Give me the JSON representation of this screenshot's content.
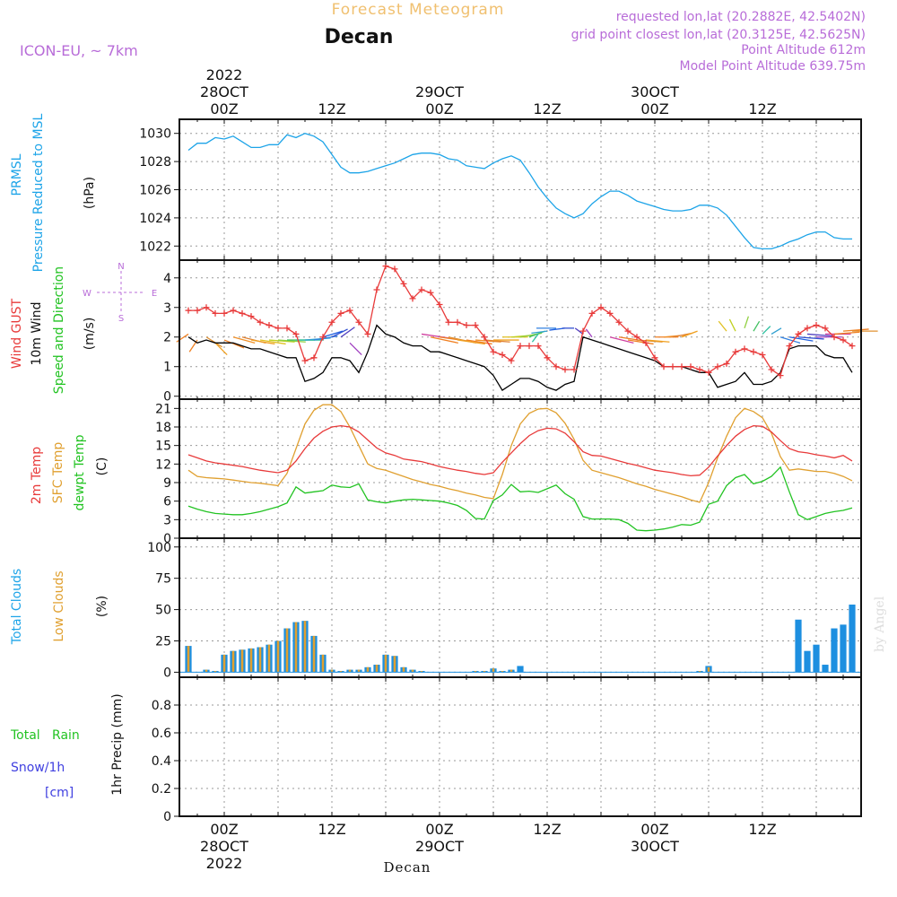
{
  "header": {
    "supertitle": "Forecast Meteogram",
    "location": "Decan",
    "model": "ICON-EU, ~ 7km",
    "requested": "requested lon,lat (20.2882E, 42.5402N)",
    "gridpoint": "grid point closest lon,lat (20.3125E, 42.5625N)",
    "altitude": "Point Altitude 612m",
    "model_altitude": "Model Point Altitude 639.75m",
    "watermark": "by Angel",
    "footer": "Decan"
  },
  "time_axis": {
    "year": "2022",
    "top_labels": [
      {
        "h": 0,
        "lines": [
          "2022",
          "28OCT",
          "00Z"
        ]
      },
      {
        "h": 12,
        "lines": [
          "12Z"
        ]
      },
      {
        "h": 24,
        "lines": [
          "29OCT",
          "00Z"
        ]
      },
      {
        "h": 36,
        "lines": [
          "12Z"
        ]
      },
      {
        "h": 48,
        "lines": [
          "30OCT",
          "00Z"
        ]
      },
      {
        "h": 60,
        "lines": [
          "12Z"
        ]
      }
    ],
    "bottom_labels": [
      {
        "h": 0,
        "lines": [
          "00Z",
          "28OCT",
          "2022"
        ]
      },
      {
        "h": 12,
        "lines": [
          "12Z"
        ]
      },
      {
        "h": 24,
        "lines": [
          "00Z",
          "29OCT"
        ]
      },
      {
        "h": 36,
        "lines": [
          "12Z"
        ]
      },
      {
        "h": 48,
        "lines": [
          "00Z",
          "30OCT"
        ]
      },
      {
        "h": 60,
        "lines": [
          "12Z"
        ]
      }
    ],
    "hour_range": [
      -5,
      71
    ]
  },
  "panels": {
    "pressure": {
      "label1": "PRMSL",
      "label2": "Pressure Reduced to MSL",
      "unit": "(hPa)"
    },
    "wind": {
      "label_gust": "Wind GUST",
      "label_wind": "10m Wind",
      "label_dir": "Speed and Direction",
      "unit": "(m/s)",
      "compass": {
        "n": "N",
        "s": "S",
        "e": "E",
        "w": "W"
      }
    },
    "temp": {
      "label_t2m": "2m Temp",
      "label_sfc": "SFC Temp",
      "label_dew": "dewpt Temp",
      "unit": "(C)"
    },
    "clouds": {
      "label_total": "Total Clouds",
      "label_low": "Low Clouds",
      "unit": "(%)"
    },
    "precip": {
      "label_rain": "Total   Rain",
      "label_snow": "Snow/1h",
      "label_cm": "[cm]",
      "unit": "1hr Precip (mm)"
    }
  },
  "colors": {
    "pressure": "#1da4e8",
    "gust": "#e83a3a",
    "wind": "#000000",
    "t2m": "#e83a3a",
    "sfc": "#e0a030",
    "dew": "#22c322",
    "total_cloud": "#1d8fe0",
    "low_cloud": "#e0a030",
    "title": "#f0c070",
    "meta": "#b86cd8",
    "rain": "#22c322",
    "snow": "#4040e0"
  },
  "chart_data": [
    {
      "type": "line",
      "title": "PRMSL Pressure Reduced to MSL",
      "ylabel": "hPa",
      "ylim": [
        1021,
        1031
      ],
      "yticks": [
        1022,
        1024,
        1026,
        1028,
        1030
      ],
      "x": [
        -4,
        -3,
        -2,
        -1,
        0,
        1,
        2,
        3,
        4,
        5,
        6,
        7,
        8,
        9,
        10,
        11,
        12,
        13,
        14,
        15,
        16,
        17,
        18,
        19,
        20,
        21,
        22,
        23,
        24,
        25,
        26,
        27,
        28,
        29,
        30,
        31,
        32,
        33,
        34,
        35,
        36,
        37,
        38,
        39,
        40,
        41,
        42,
        43,
        44,
        45,
        46,
        47,
        48,
        49,
        50,
        51,
        52,
        53,
        54,
        55,
        56,
        57,
        58,
        59,
        60,
        61,
        62,
        63,
        64,
        65,
        66,
        67,
        68,
        69,
        70
      ],
      "series": [
        {
          "name": "PRMSL",
          "values": [
            1028.8,
            1029.3,
            1029.3,
            1029.7,
            1029.6,
            1029.8,
            1029.4,
            1029.0,
            1029.0,
            1029.2,
            1029.2,
            1029.9,
            1029.7,
            1030.0,
            1029.8,
            1029.4,
            1028.5,
            1027.6,
            1027.2,
            1027.2,
            1027.3,
            1027.5,
            1027.7,
            1027.9,
            1028.2,
            1028.5,
            1028.6,
            1028.6,
            1028.5,
            1028.2,
            1028.1,
            1027.7,
            1027.6,
            1027.5,
            1027.9,
            1028.2,
            1028.4,
            1028.1,
            1027.2,
            1026.2,
            1025.4,
            1024.7,
            1024.3,
            1024.0,
            1024.3,
            1025.0,
            1025.5,
            1025.9,
            1025.9,
            1025.6,
            1025.2,
            1025.0,
            1024.8,
            1024.6,
            1024.5,
            1024.5,
            1024.6,
            1024.9,
            1024.9,
            1024.7,
            1024.2,
            1023.4,
            1022.6,
            1021.9,
            1021.8,
            1021.8,
            1022.0,
            1022.3,
            1022.5,
            1022.8,
            1023.0,
            1023.0,
            1022.6,
            1022.5,
            1022.5
          ]
        }
      ]
    },
    {
      "type": "line",
      "title": "Wind GUST / 10m Wind Speed and Direction",
      "ylabel": "m/s",
      "ylim": [
        0,
        4.6
      ],
      "yticks": [
        0,
        1,
        2,
        3,
        4
      ],
      "x": [
        -4,
        -3,
        -2,
        -1,
        0,
        1,
        2,
        3,
        4,
        5,
        6,
        7,
        8,
        9,
        10,
        11,
        12,
        13,
        14,
        15,
        16,
        17,
        18,
        19,
        20,
        21,
        22,
        23,
        24,
        25,
        26,
        27,
        28,
        29,
        30,
        31,
        32,
        33,
        34,
        35,
        36,
        37,
        38,
        39,
        40,
        41,
        42,
        43,
        44,
        45,
        46,
        47,
        48,
        49,
        50,
        51,
        52,
        53,
        54,
        55,
        56,
        57,
        58,
        59,
        60,
        61,
        62,
        63,
        64,
        65,
        66,
        67,
        68,
        69,
        70
      ],
      "series": [
        {
          "name": "Wind GUST",
          "values": [
            2.9,
            2.9,
            3.0,
            2.8,
            2.8,
            2.9,
            2.8,
            2.7,
            2.5,
            2.4,
            2.3,
            2.3,
            2.1,
            1.2,
            1.3,
            2.0,
            2.5,
            2.8,
            2.9,
            2.5,
            2.1,
            3.6,
            4.4,
            4.3,
            3.8,
            3.3,
            3.6,
            3.5,
            3.1,
            2.5,
            2.5,
            2.4,
            2.4,
            2.0,
            1.5,
            1.4,
            1.2,
            1.7,
            1.7,
            1.7,
            1.3,
            1.0,
            0.9,
            0.9,
            2.2,
            2.8,
            3.0,
            2.8,
            2.5,
            2.2,
            2.0,
            1.8,
            1.3,
            1.0,
            1.0,
            1.0,
            1.0,
            0.9,
            0.8,
            1.0,
            1.1,
            1.5,
            1.6,
            1.5,
            1.4,
            0.9,
            0.7,
            1.7,
            2.1,
            2.3,
            2.4,
            2.3,
            2.0,
            1.9,
            1.7
          ]
        },
        {
          "name": "10m Wind",
          "values": [
            2.0,
            1.8,
            1.9,
            1.8,
            1.8,
            1.8,
            1.7,
            1.6,
            1.6,
            1.5,
            1.4,
            1.3,
            1.3,
            0.5,
            0.6,
            0.8,
            1.3,
            1.3,
            1.2,
            0.8,
            1.5,
            2.4,
            2.1,
            2.0,
            1.8,
            1.7,
            1.7,
            1.5,
            1.5,
            1.4,
            1.3,
            1.2,
            1.1,
            1.0,
            0.7,
            0.2,
            0.4,
            0.6,
            0.6,
            0.5,
            0.3,
            0.2,
            0.4,
            0.5,
            2.0,
            1.9,
            1.8,
            1.7,
            1.6,
            1.5,
            1.4,
            1.3,
            1.2,
            1.0,
            1.0,
            1.0,
            0.9,
            0.8,
            0.8,
            0.3,
            0.4,
            0.5,
            0.8,
            0.4,
            0.4,
            0.5,
            0.8,
            1.6,
            1.7,
            1.7,
            1.7,
            1.4,
            1.3,
            1.3,
            0.8
          ]
        }
      ]
    },
    {
      "type": "line",
      "title": "2m Temp / SFC Temp / dewpt Temp",
      "ylabel": "C",
      "ylim": [
        0,
        22.5
      ],
      "yticks": [
        0,
        3,
        6,
        9,
        12,
        15,
        18,
        21
      ],
      "x": [
        -4,
        -3,
        -2,
        -1,
        0,
        1,
        2,
        3,
        4,
        5,
        6,
        7,
        8,
        9,
        10,
        11,
        12,
        13,
        14,
        15,
        16,
        17,
        18,
        19,
        20,
        21,
        22,
        23,
        24,
        25,
        26,
        27,
        28,
        29,
        30,
        31,
        32,
        33,
        34,
        35,
        36,
        37,
        38,
        39,
        40,
        41,
        42,
        43,
        44,
        45,
        46,
        47,
        48,
        49,
        50,
        51,
        52,
        53,
        54,
        55,
        56,
        57,
        58,
        59,
        60,
        61,
        62,
        63,
        64,
        65,
        66,
        67,
        68,
        69,
        70
      ],
      "series": [
        {
          "name": "2m Temp",
          "values": [
            13.5,
            13.0,
            12.5,
            12.2,
            12.0,
            11.8,
            11.6,
            11.3,
            11.0,
            10.8,
            10.6,
            11.0,
            12.5,
            14.5,
            16.2,
            17.3,
            18.0,
            18.2,
            18.0,
            17.2,
            15.9,
            14.6,
            13.8,
            13.4,
            12.8,
            12.6,
            12.4,
            12.0,
            11.6,
            11.3,
            11.0,
            10.8,
            10.5,
            10.3,
            10.6,
            12.3,
            13.8,
            15.3,
            16.6,
            17.4,
            17.8,
            17.7,
            17.0,
            15.6,
            14.0,
            13.4,
            13.3,
            12.9,
            12.5,
            12.1,
            11.8,
            11.4,
            11.0,
            10.8,
            10.6,
            10.3,
            10.1,
            10.2,
            11.5,
            13.3,
            15.0,
            16.5,
            17.6,
            18.2,
            18.1,
            17.2,
            15.8,
            14.5,
            14.0,
            13.8,
            13.5,
            13.3,
            13.0,
            13.4,
            12.5
          ]
        },
        {
          "name": "SFC Temp",
          "values": [
            11.0,
            10.0,
            9.8,
            9.7,
            9.6,
            9.4,
            9.2,
            9.0,
            8.9,
            8.7,
            8.5,
            10.5,
            14.5,
            18.5,
            20.7,
            21.6,
            21.6,
            20.5,
            18.0,
            15.0,
            12.0,
            11.3,
            11.0,
            10.5,
            10.0,
            9.5,
            9.1,
            8.7,
            8.4,
            8.0,
            7.7,
            7.3,
            7.0,
            6.6,
            6.4,
            10.3,
            15.0,
            18.5,
            20.2,
            20.9,
            21.0,
            20.3,
            18.6,
            16.0,
            12.6,
            11.0,
            10.6,
            10.2,
            9.8,
            9.3,
            8.8,
            8.4,
            7.9,
            7.5,
            7.1,
            6.7,
            6.2,
            5.8,
            9.0,
            13.0,
            16.5,
            19.5,
            21.0,
            20.5,
            19.5,
            17.0,
            13.2,
            11.0,
            11.2,
            11.0,
            10.8,
            10.8,
            10.5,
            10.0,
            9.3
          ]
        },
        {
          "name": "dewpt Temp",
          "values": [
            5.2,
            4.7,
            4.3,
            4.0,
            3.9,
            3.8,
            3.8,
            4.0,
            4.3,
            4.7,
            5.1,
            5.7,
            8.3,
            7.3,
            7.5,
            7.7,
            8.6,
            8.3,
            8.2,
            8.8,
            6.2,
            5.9,
            5.7,
            6.0,
            6.2,
            6.3,
            6.2,
            6.1,
            6.0,
            5.7,
            5.3,
            4.5,
            3.2,
            3.1,
            6.1,
            7.0,
            8.7,
            7.5,
            7.6,
            7.4,
            8.0,
            8.6,
            7.2,
            6.3,
            3.5,
            3.1,
            3.1,
            3.1,
            3.0,
            2.4,
            1.3,
            1.2,
            1.3,
            1.5,
            1.8,
            2.2,
            2.1,
            2.6,
            5.5,
            6.0,
            8.5,
            9.8,
            10.3,
            8.8,
            9.2,
            10.0,
            11.5,
            7.5,
            3.8,
            3.0,
            3.5,
            4.0,
            4.3,
            4.5,
            4.9
          ]
        }
      ]
    },
    {
      "type": "bar",
      "title": "Total Clouds / Low Clouds",
      "ylabel": "%",
      "ylim": [
        -4,
        107
      ],
      "yticks": [
        0,
        25,
        50,
        75,
        100
      ],
      "x": [
        -4,
        -3,
        -2,
        -1,
        0,
        1,
        2,
        3,
        4,
        5,
        6,
        7,
        8,
        9,
        10,
        11,
        12,
        13,
        14,
        15,
        16,
        17,
        18,
        19,
        20,
        21,
        22,
        23,
        24,
        25,
        26,
        27,
        28,
        29,
        30,
        31,
        32,
        33,
        34,
        35,
        36,
        37,
        38,
        39,
        40,
        41,
        42,
        43,
        44,
        45,
        46,
        47,
        48,
        49,
        50,
        51,
        52,
        53,
        54,
        55,
        56,
        57,
        58,
        59,
        60,
        61,
        62,
        63,
        64,
        65,
        66,
        67,
        68,
        69,
        70
      ],
      "series": [
        {
          "name": "Total Clouds",
          "values": [
            21,
            0,
            2,
            1,
            14,
            17,
            18,
            19,
            20,
            22,
            25,
            35,
            40,
            41,
            29,
            14,
            2,
            1,
            2,
            2,
            4,
            6,
            14,
            13,
            4,
            2,
            1,
            0,
            0,
            0,
            0,
            0,
            1,
            1,
            3,
            1,
            2,
            5,
            0,
            0,
            0,
            0,
            0,
            0,
            0,
            0,
            0,
            0,
            0,
            0,
            0,
            0,
            0,
            0,
            0,
            0,
            0,
            1,
            5,
            0,
            0,
            0,
            0,
            0,
            0,
            0,
            0,
            0,
            42,
            17,
            22,
            6,
            35,
            38,
            54
          ]
        },
        {
          "name": "Low Clouds",
          "values": [
            21,
            0,
            2,
            1,
            14,
            17,
            18,
            19,
            20,
            22,
            25,
            35,
            40,
            41,
            29,
            14,
            2,
            1,
            2,
            2,
            4,
            6,
            14,
            13,
            4,
            2,
            1,
            0,
            0,
            0,
            0,
            0,
            1,
            1,
            3,
            1,
            2,
            0,
            0,
            0,
            0,
            0,
            0,
            0,
            0,
            0,
            0,
            0,
            0,
            0,
            0,
            0,
            0,
            0,
            0,
            0,
            0,
            1,
            4,
            0,
            0,
            0,
            0,
            0,
            0,
            0,
            0,
            0,
            0,
            0,
            0,
            0,
            0,
            0,
            0
          ]
        }
      ]
    },
    {
      "type": "bar",
      "title": "1hr Precip",
      "ylabel": "1hr Precip (mm)",
      "ylim": [
        0,
        1.0
      ],
      "yticks": [
        0,
        0.2,
        0.4,
        0.6,
        0.8
      ],
      "series": [
        {
          "name": "Total Rain",
          "values": []
        },
        {
          "name": "Snow/1h",
          "values": []
        }
      ]
    }
  ]
}
